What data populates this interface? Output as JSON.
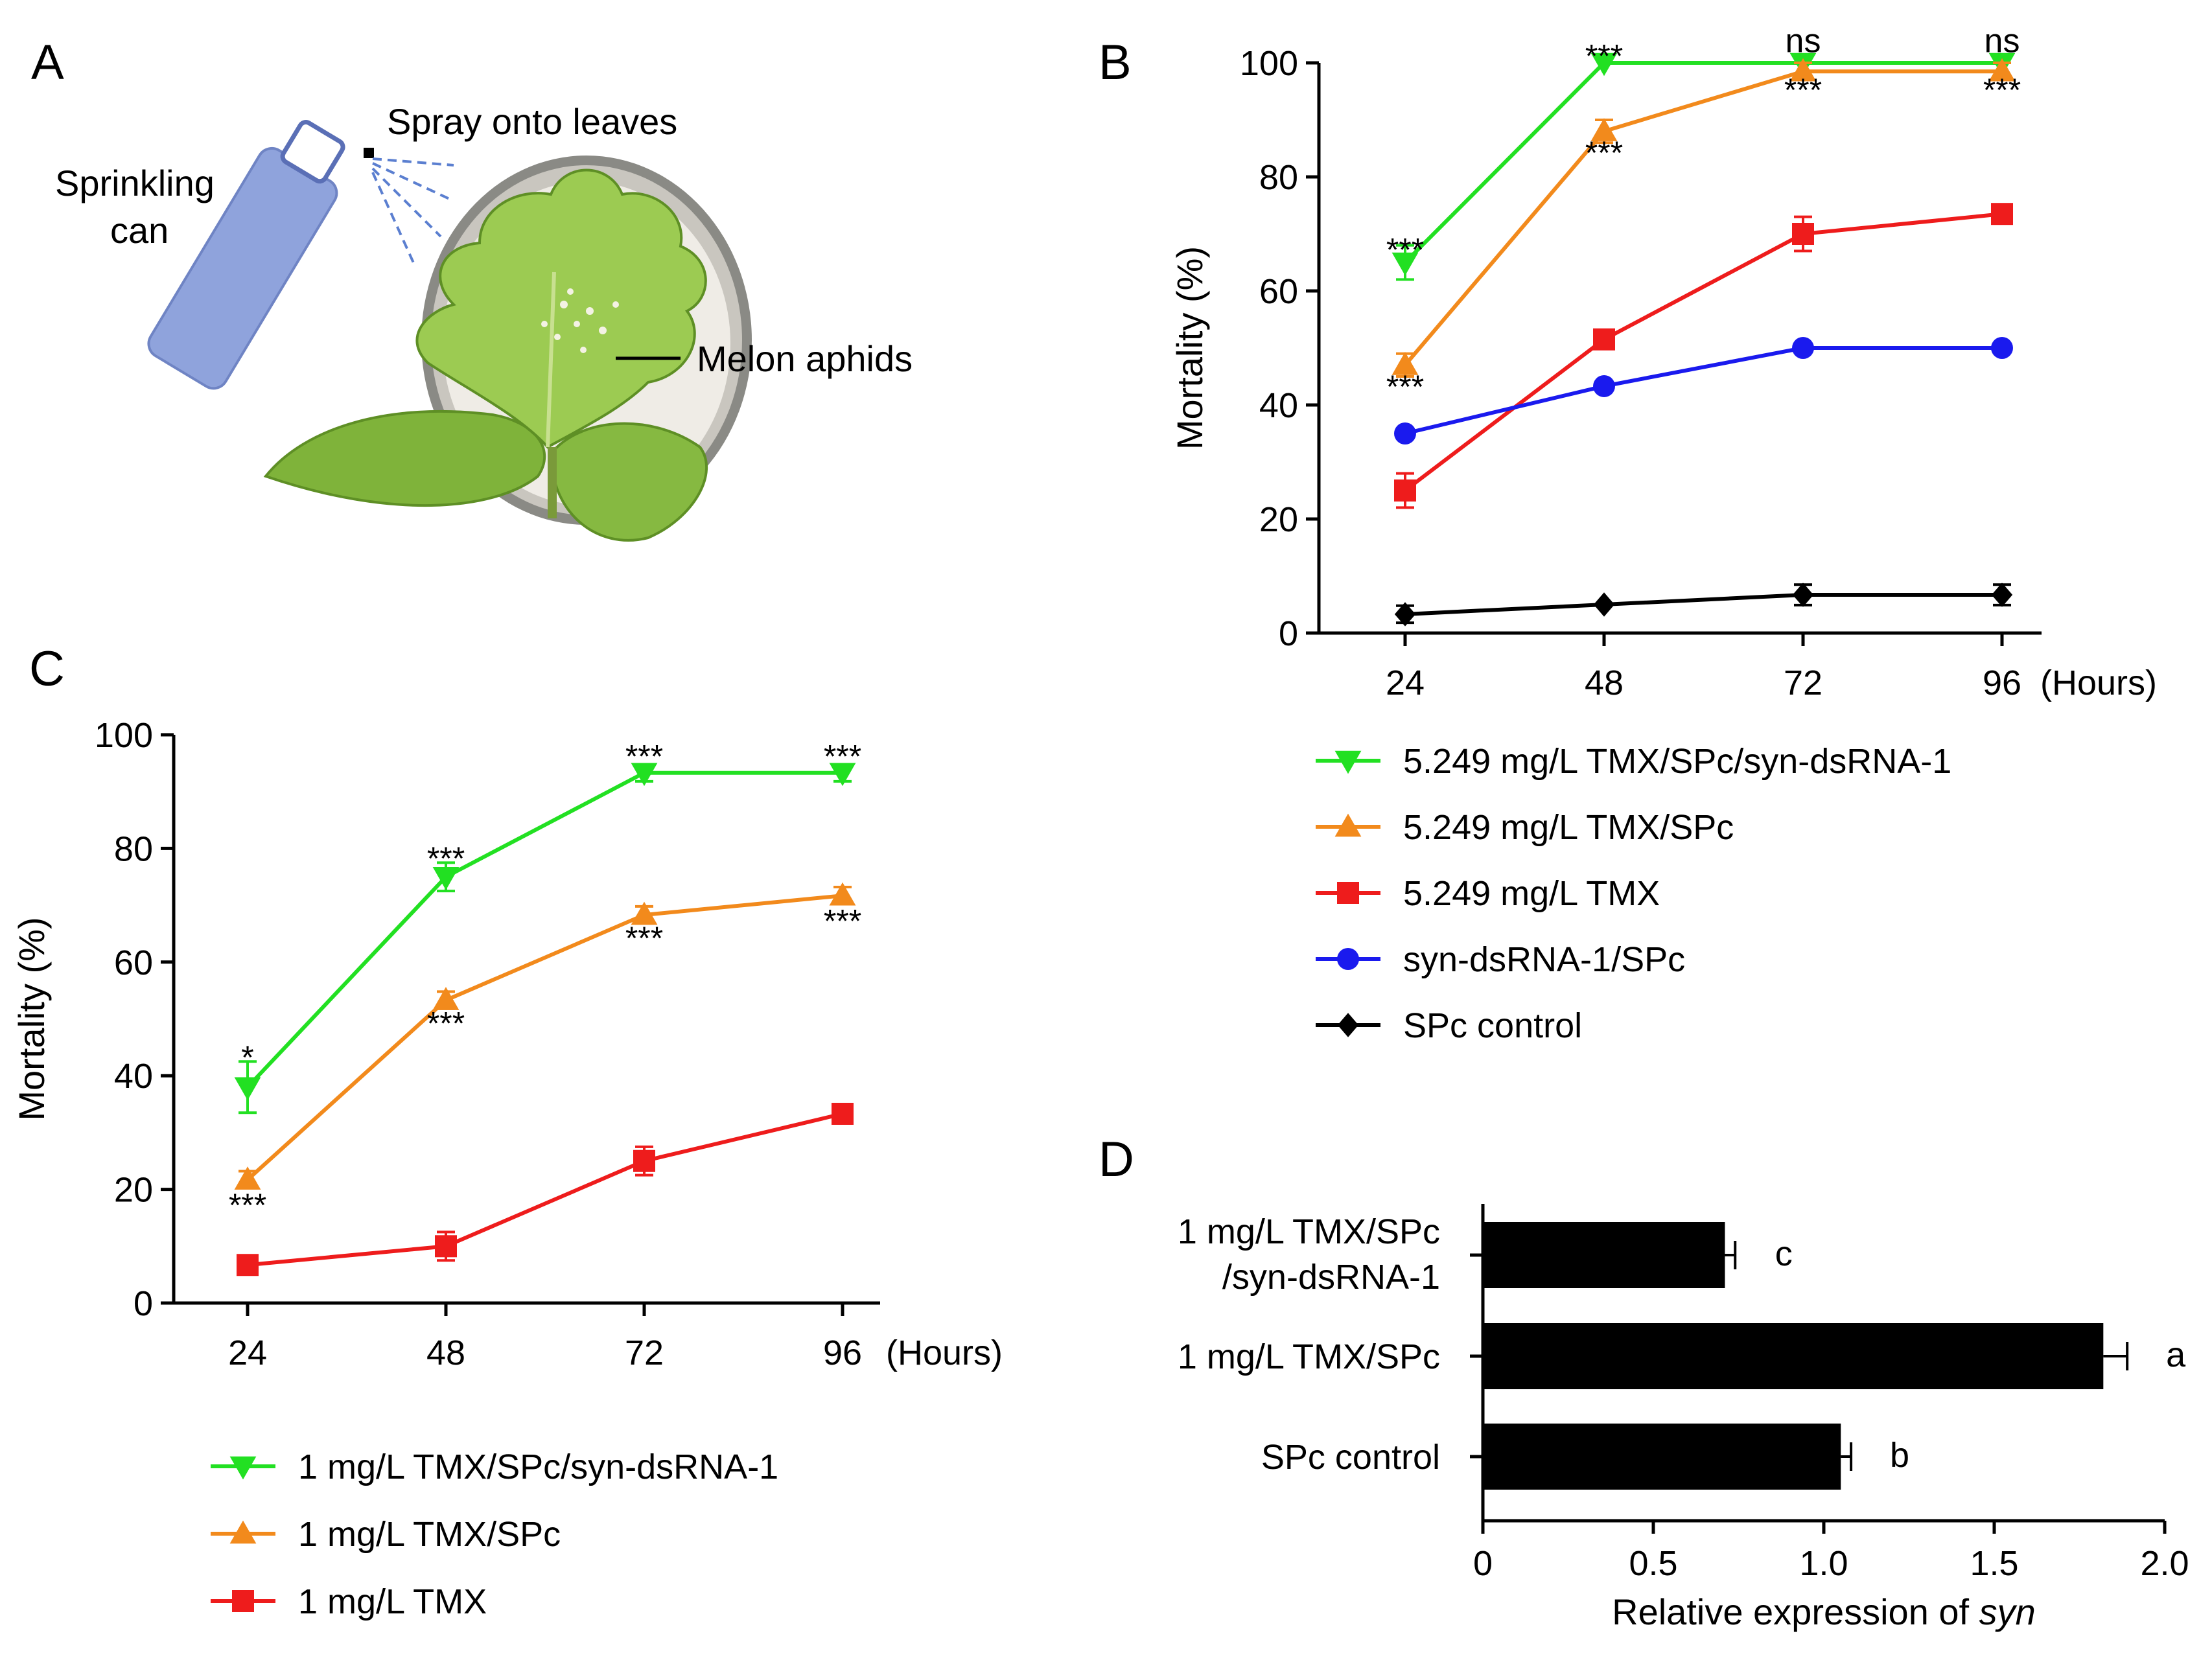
{
  "panels": {
    "A": {
      "letter": "A",
      "spray_label": "Spray onto leaves",
      "can_label_line1": "Sprinkling",
      "can_label_line2": "can",
      "aphid_label": "Melon aphids"
    },
    "B": {
      "letter": "B"
    },
    "C": {
      "letter": "C"
    },
    "D": {
      "letter": "D"
    }
  },
  "colors": {
    "green": "#22e022",
    "orange": "#f28a1c",
    "red": "#ee1c1c",
    "blue": "#1a1aee",
    "black": "#000000"
  },
  "chart_data": [
    {
      "panel": "B",
      "type": "line",
      "x": [
        24,
        48,
        72,
        96
      ],
      "xtick_labels": [
        "24",
        "48",
        "72",
        "96"
      ],
      "x_unit_label": "(Hours)",
      "ylabel": "Mortality (%)",
      "ylim": [
        0,
        100
      ],
      "yticks": [
        0,
        20,
        40,
        60,
        80,
        100
      ],
      "series": [
        {
          "name": "5.249 mg/L TMX/SPc/syn-dsRNA-1",
          "color": "green",
          "marker": "triangle-down",
          "values": [
            65,
            100,
            100,
            100
          ],
          "err": [
            3,
            0,
            0,
            0
          ]
        },
        {
          "name": "5.249 mg/L TMX/SPc",
          "color": "orange",
          "marker": "triangle-up",
          "values": [
            47,
            88,
            98.5,
            98.5
          ],
          "err": [
            2,
            2,
            1.5,
            1.5
          ]
        },
        {
          "name": "5.249 mg/L TMX",
          "color": "red",
          "marker": "square",
          "values": [
            25,
            51.5,
            70,
            73.5
          ],
          "err": [
            3,
            1,
            3,
            0
          ]
        },
        {
          "name": "syn-dsRNA-1/SPc",
          "color": "blue",
          "marker": "circle",
          "values": [
            35,
            43.3,
            50,
            50
          ],
          "err": [
            0,
            0,
            0,
            0
          ]
        },
        {
          "name": "SPc control",
          "color": "black",
          "marker": "diamond",
          "values": [
            3.3,
            5,
            6.7,
            6.7
          ],
          "err": [
            1.5,
            0,
            1.8,
            1.8
          ]
        }
      ],
      "annotations": [
        {
          "x": 24,
          "text": "***",
          "above": 68
        },
        {
          "x": 48,
          "text": "***",
          "above": 102
        },
        {
          "x": 72,
          "text": "ns",
          "above": 103
        },
        {
          "x": 96,
          "text": "ns",
          "above": 103
        },
        {
          "x": 24,
          "text": "***",
          "below": 44
        },
        {
          "x": 48,
          "text": "***",
          "below": 85
        },
        {
          "x": 72,
          "text": "***",
          "below": 96
        },
        {
          "x": 96,
          "text": "***",
          "below": 96
        }
      ]
    },
    {
      "panel": "C",
      "type": "line",
      "x": [
        24,
        48,
        72,
        96
      ],
      "xtick_labels": [
        "24",
        "48",
        "72",
        "96"
      ],
      "x_unit_label": "(Hours)",
      "ylabel": "Mortality (%)",
      "ylim": [
        0,
        100
      ],
      "yticks": [
        0,
        20,
        40,
        60,
        80,
        100
      ],
      "series": [
        {
          "name": "1 mg/L TMX/SPc/syn-dsRNA-1",
          "color": "green",
          "marker": "triangle-down",
          "values": [
            38,
            75,
            93.3,
            93.3
          ],
          "err": [
            4.5,
            2.5,
            1.5,
            1.5
          ]
        },
        {
          "name": "1 mg/L TMX/SPc",
          "color": "orange",
          "marker": "triangle-up",
          "values": [
            21.7,
            53.3,
            68.3,
            71.7
          ],
          "err": [
            1.5,
            1.5,
            1.5,
            1.5
          ]
        },
        {
          "name": "1 mg/L TMX",
          "color": "red",
          "marker": "square",
          "values": [
            6.7,
            10,
            25,
            33.3
          ],
          "err": [
            0,
            2.5,
            2.5,
            0
          ]
        }
      ],
      "annotations": [
        {
          "x": 24,
          "text": "*",
          "above": 44
        },
        {
          "x": 48,
          "text": "***",
          "above": 79
        },
        {
          "x": 72,
          "text": "***",
          "above": 97
        },
        {
          "x": 96,
          "text": "***",
          "above": 97
        },
        {
          "x": 24,
          "text": "***",
          "below": 18
        },
        {
          "x": 48,
          "text": "***",
          "below": 50
        },
        {
          "x": 72,
          "text": "***",
          "below": 65
        },
        {
          "x": 96,
          "text": "***",
          "below": 68
        }
      ]
    },
    {
      "panel": "D",
      "type": "bar",
      "orientation": "horizontal",
      "categories": [
        {
          "line1": "1 mg/L TMX/SPc",
          "line2": "/syn-dsRNA-1"
        },
        {
          "line1": "1 mg/L TMX/SPc",
          "line2": ""
        },
        {
          "line1": "SPc control",
          "line2": ""
        }
      ],
      "values": [
        0.71,
        1.82,
        1.05
      ],
      "err": [
        0.03,
        0.07,
        0.03
      ],
      "letters": [
        "c",
        "a",
        "b"
      ],
      "xlim": [
        0,
        2.0
      ],
      "xticks": [
        0,
        0.5,
        1.0,
        1.5,
        2.0
      ],
      "xtick_labels": [
        "0",
        "0.5",
        "1.0",
        "1.5",
        "2.0"
      ],
      "xlabel_prefix": "Relative expression of ",
      "xlabel_italic": "syn",
      "bar_color": "black"
    }
  ]
}
